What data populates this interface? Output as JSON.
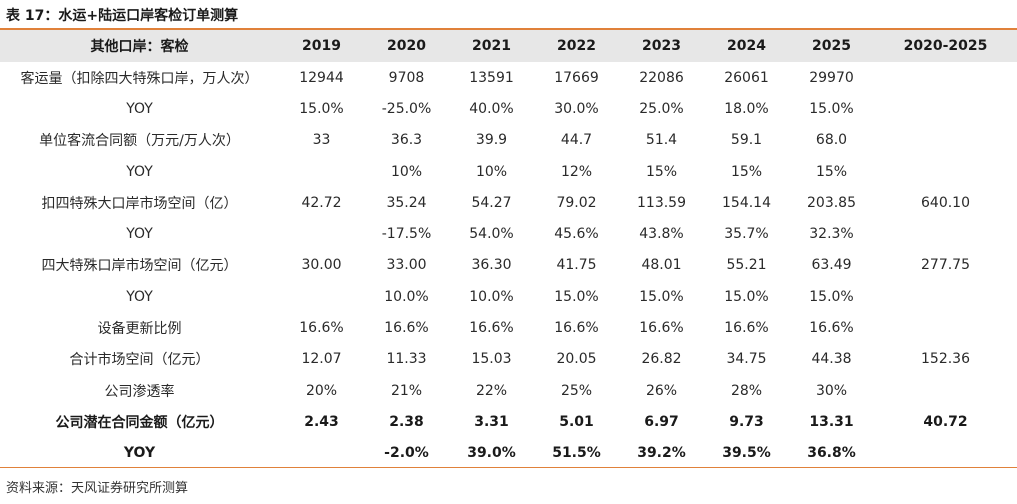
{
  "title": "表 17：水运+陆运口岸客检订单测算",
  "source": "资料来源：天风证券研究所测算",
  "table": {
    "headers": [
      "其他口岸：客检",
      "2019",
      "2020",
      "2021",
      "2022",
      "2023",
      "2024",
      "2025",
      "2020-2025"
    ],
    "rows": [
      {
        "bold": false,
        "cells": [
          "客运量（扣除四大特殊口岸，万人次）",
          "12944",
          "9708",
          "13591",
          "17669",
          "22086",
          "26061",
          "29970",
          ""
        ]
      },
      {
        "bold": false,
        "cells": [
          "YOY",
          "15.0%",
          "-25.0%",
          "40.0%",
          "30.0%",
          "25.0%",
          "18.0%",
          "15.0%",
          ""
        ]
      },
      {
        "bold": false,
        "cells": [
          "单位客流合同额（万元/万人次）",
          "33",
          "36.3",
          "39.9",
          "44.7",
          "51.4",
          "59.1",
          "68.0",
          ""
        ]
      },
      {
        "bold": false,
        "cells": [
          "YOY",
          "",
          "10%",
          "10%",
          "12%",
          "15%",
          "15%",
          "15%",
          ""
        ]
      },
      {
        "bold": false,
        "cells": [
          "扣四特殊大口岸市场空间（亿）",
          "42.72",
          "35.24",
          "54.27",
          "79.02",
          "113.59",
          "154.14",
          "203.85",
          "640.10"
        ]
      },
      {
        "bold": false,
        "cells": [
          "YOY",
          "",
          "-17.5%",
          "54.0%",
          "45.6%",
          "43.8%",
          "35.7%",
          "32.3%",
          ""
        ]
      },
      {
        "bold": false,
        "cells": [
          "四大特殊口岸市场空间（亿元）",
          "30.00",
          "33.00",
          "36.30",
          "41.75",
          "48.01",
          "55.21",
          "63.49",
          "277.75"
        ]
      },
      {
        "bold": false,
        "cells": [
          "YOY",
          "",
          "10.0%",
          "10.0%",
          "15.0%",
          "15.0%",
          "15.0%",
          "15.0%",
          ""
        ]
      },
      {
        "bold": false,
        "cells": [
          "设备更新比例",
          "16.6%",
          "16.6%",
          "16.6%",
          "16.6%",
          "16.6%",
          "16.6%",
          "16.6%",
          ""
        ]
      },
      {
        "bold": false,
        "cells": [
          "合计市场空间（亿元）",
          "12.07",
          "11.33",
          "15.03",
          "20.05",
          "26.82",
          "34.75",
          "44.38",
          "152.36"
        ]
      },
      {
        "bold": false,
        "cells": [
          "公司渗透率",
          "20%",
          "21%",
          "22%",
          "25%",
          "26%",
          "28%",
          "30%",
          ""
        ]
      },
      {
        "bold": true,
        "cells": [
          "公司潜在合同金额（亿元）",
          "2.43",
          "2.38",
          "3.31",
          "5.01",
          "6.97",
          "9.73",
          "13.31",
          "40.72"
        ]
      },
      {
        "bold": true,
        "cells": [
          "YOY",
          "",
          "-2.0%",
          "39.0%",
          "51.5%",
          "39.2%",
          "39.5%",
          "36.8%",
          ""
        ]
      }
    ]
  }
}
